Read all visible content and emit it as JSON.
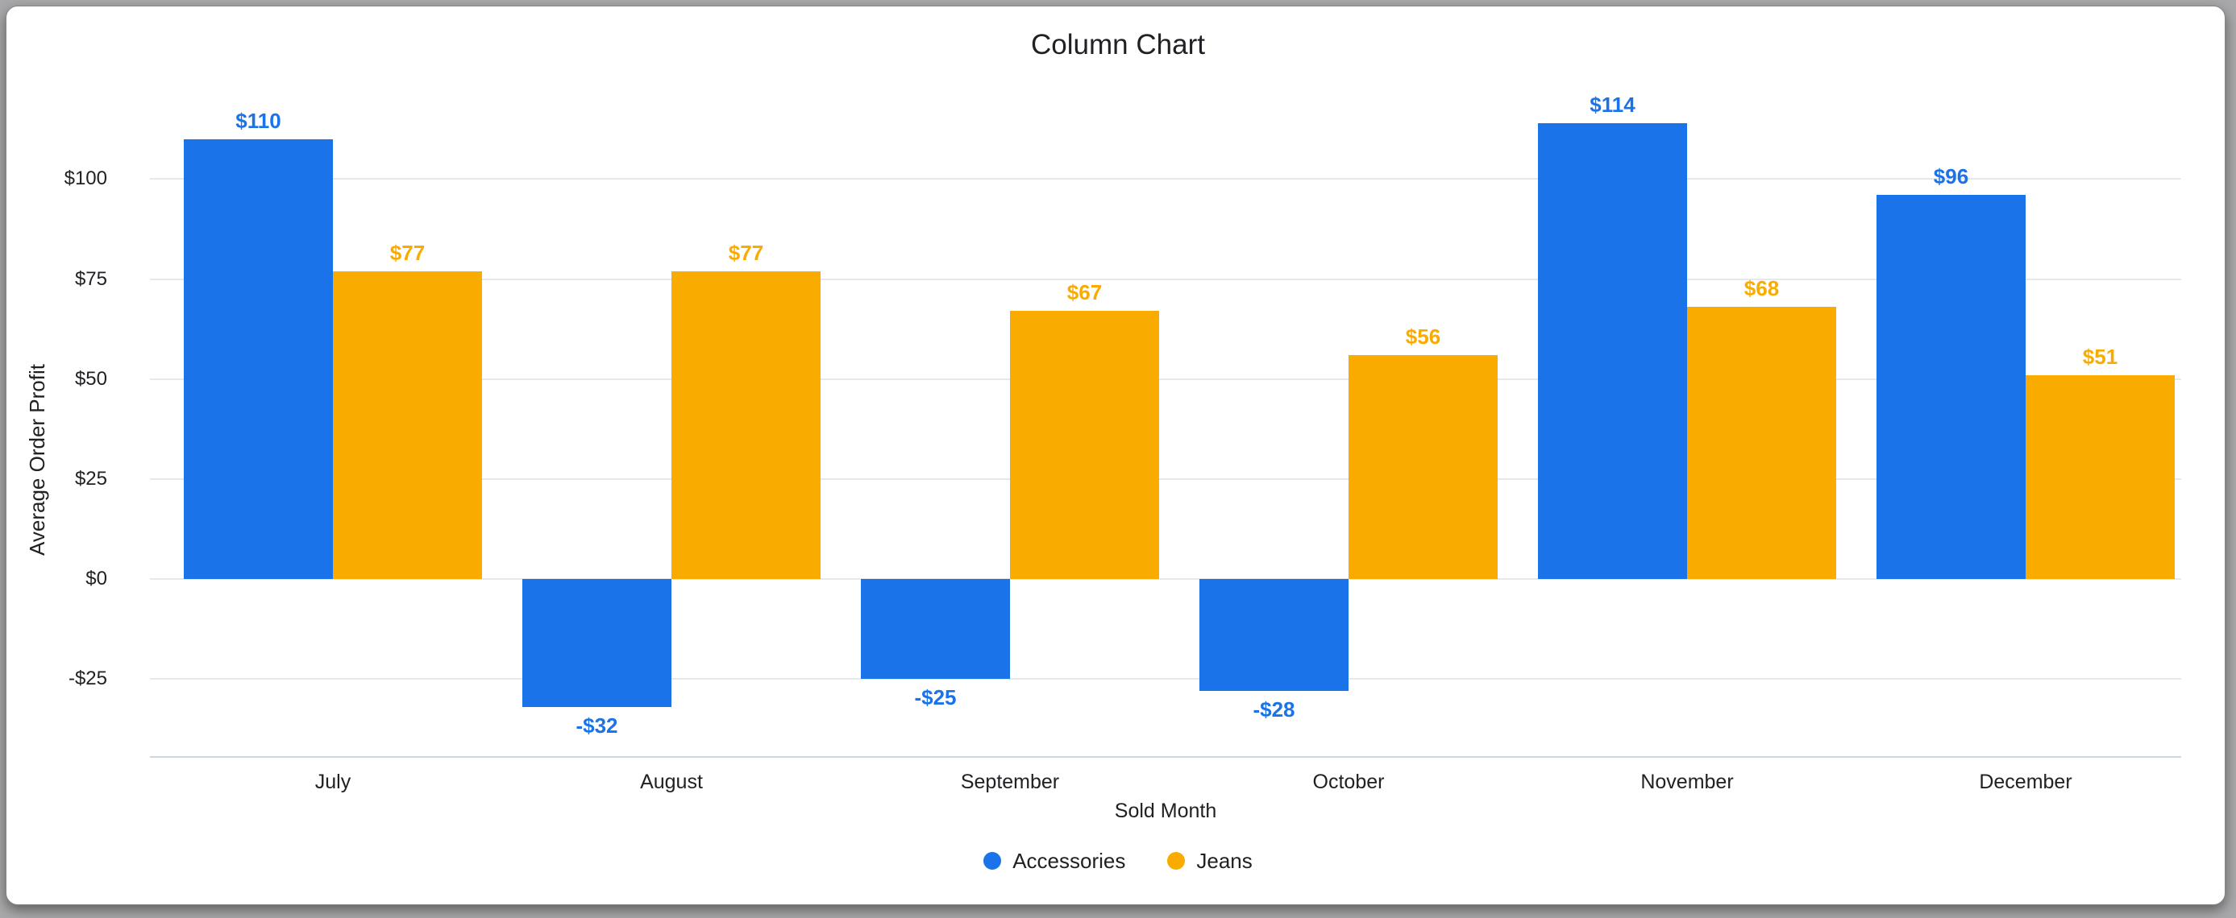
{
  "chart_data": {
    "type": "bar",
    "title": "Column Chart",
    "xlabel": "Sold Month",
    "ylabel": "Average Order Profit",
    "categories": [
      "July",
      "August",
      "September",
      "October",
      "November",
      "December"
    ],
    "series": [
      {
        "name": "Accessories",
        "color": "#1a73e8",
        "values": [
          110,
          -32,
          -25,
          -28,
          114,
          96
        ],
        "labels": [
          "$110",
          "-$32",
          "-$25",
          "-$28",
          "$114",
          "$96"
        ]
      },
      {
        "name": "Jeans",
        "color": "#f9ab00",
        "values": [
          77,
          77,
          67,
          56,
          68,
          51
        ],
        "labels": [
          "$77",
          "$77",
          "$67",
          "$56",
          "$68",
          "$51"
        ]
      }
    ],
    "y_ticks": [
      {
        "value": 100,
        "label": "$100"
      },
      {
        "value": 75,
        "label": "$75"
      },
      {
        "value": 50,
        "label": "$50"
      },
      {
        "value": 25,
        "label": "$25"
      },
      {
        "value": 0,
        "label": "$0"
      },
      {
        "value": -25,
        "label": "-$25"
      }
    ],
    "ylim": [
      -44.5,
      125
    ],
    "grid": true,
    "legend_position": "bottom"
  }
}
